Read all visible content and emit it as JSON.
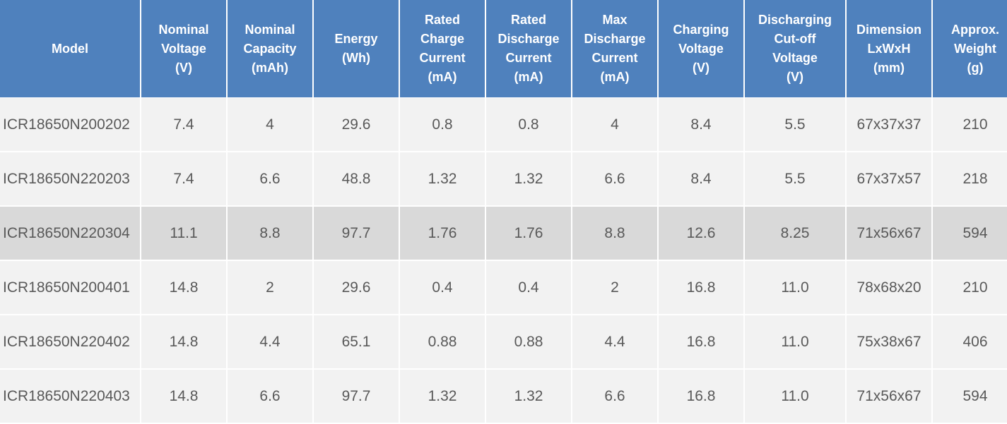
{
  "table": {
    "headers": [
      "Model",
      "Nominal\nVoltage\n(V)",
      "Nominal\nCapacity\n(mAh)",
      "Energy\n(Wh)",
      "Rated\nCharge\nCurrent\n(mA)",
      "Rated\nDischarge\nCurrent\n(mA)",
      "Max\nDischarge\nCurrent\n(mA)",
      "Charging\nVoltage\n(V)",
      "Discharging\nCut-off\nVoltage\n(V)",
      "Dimension\nLxWxH\n(mm)",
      "Approx.\nWeight\n(g)"
    ],
    "rows": [
      [
        "ICR18650N200202",
        "7.4",
        "4",
        "29.6",
        "0.8",
        "0.8",
        "4",
        "8.4",
        "5.5",
        "67x37x37",
        "210"
      ],
      [
        "ICR18650N220203",
        "7.4",
        "6.6",
        "48.8",
        "1.32",
        "1.32",
        "6.6",
        "8.4",
        "5.5",
        "67x37x57",
        "218"
      ],
      [
        "ICR18650N220304",
        "11.1",
        "8.8",
        "97.7",
        "1.76",
        "1.76",
        "8.8",
        "12.6",
        "8.25",
        "71x56x67",
        "594"
      ],
      [
        "ICR18650N200401",
        "14.8",
        "2",
        "29.6",
        "0.4",
        "0.4",
        "2",
        "16.8",
        "11.0",
        "78x68x20",
        "210"
      ],
      [
        "ICR18650N220402",
        "14.8",
        "4.4",
        "65.1",
        "0.88",
        "0.88",
        "4.4",
        "16.8",
        "11.0",
        "75x38x67",
        "406"
      ],
      [
        "ICR18650N220403",
        "14.8",
        "6.6",
        "97.7",
        "1.32",
        "1.32",
        "6.6",
        "16.8",
        "11.0",
        "71x56x67",
        "594"
      ]
    ],
    "highlighted_row": 2
  },
  "colors": {
    "header_bg": "#4f81bd",
    "header_text": "#ffffff",
    "row_bg": "#f2f2f2",
    "highlight_row_bg": "#d9d9d9",
    "cell_text": "#595959"
  }
}
